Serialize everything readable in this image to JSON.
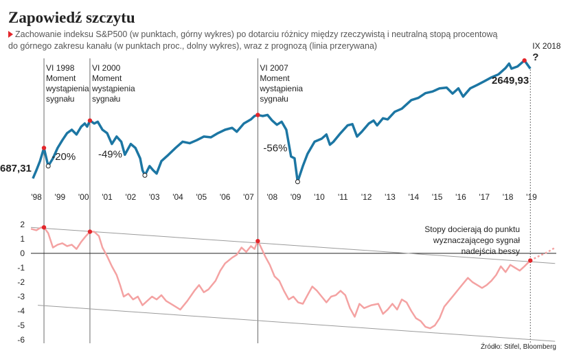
{
  "title": "Zapowiedź szczytu",
  "subtitle": [
    "Zachowanie indeksu S&P500 (w punktach, górny wykres) po dotarciu różnicy między rzeczywistą i neutralną stopą procentową",
    "do górnego zakresu kanału (w punktach proc., dolny wykres), wraz z prognozą (linia przerywana)"
  ],
  "source": "Źródło: Stifel, Bloomberg",
  "chart_data": [
    {
      "type": "line",
      "log_scale": true,
      "color": "#1c76a3",
      "xlim": [
        1997.62,
        2020.05
      ],
      "ylim": [
        590,
        3300
      ],
      "xticks": [
        {
          "value": 1998,
          "label": "'98"
        },
        {
          "value": 1999,
          "label": "'99"
        },
        {
          "value": 2000,
          "label": "'00"
        },
        {
          "value": 2001,
          "label": "'01"
        },
        {
          "value": 2002,
          "label": "'02"
        },
        {
          "value": 2003,
          "label": "'03"
        },
        {
          "value": 2004,
          "label": "'04"
        },
        {
          "value": 2005,
          "label": "'05"
        },
        {
          "value": 2006,
          "label": "'06"
        },
        {
          "value": 2007,
          "label": "'07"
        },
        {
          "value": 2008,
          "label": "'08"
        },
        {
          "value": 2009,
          "label": "'09"
        },
        {
          "value": 2010,
          "label": "'10"
        },
        {
          "value": 2011,
          "label": "'11"
        },
        {
          "value": 2012,
          "label": "'12"
        },
        {
          "value": 2013,
          "label": "'13"
        },
        {
          "value": 2014,
          "label": "'14"
        },
        {
          "value": 2015,
          "label": "'15"
        },
        {
          "value": 2016,
          "label": "'16"
        },
        {
          "value": 2017,
          "label": "'17"
        },
        {
          "value": 2018,
          "label": "'18"
        },
        {
          "value": 2019,
          "label": "'19"
        }
      ],
      "x": [
        1997.85,
        1998.0,
        1998.15,
        1998.32,
        1998.5,
        1998.7,
        1998.9,
        1999.1,
        1999.3,
        1999.5,
        1999.7,
        1999.9,
        2000.05,
        2000.15,
        2000.27,
        2000.45,
        2000.6,
        2000.8,
        2001.0,
        2001.2,
        2001.4,
        2001.6,
        2001.75,
        2002.0,
        2002.2,
        2002.4,
        2002.5,
        2002.6,
        2002.8,
        2002.95,
        2003.1,
        2003.3,
        2003.6,
        2003.9,
        2004.2,
        2004.5,
        2004.8,
        2005.1,
        2005.4,
        2005.7,
        2006.0,
        2006.3,
        2006.5,
        2006.8,
        2007.1,
        2007.25,
        2007.39,
        2007.6,
        2007.8,
        2008.0,
        2008.2,
        2008.4,
        2008.6,
        2008.8,
        2008.95,
        2009.08,
        2009.3,
        2009.5,
        2009.8,
        2010.1,
        2010.3,
        2010.45,
        2010.6,
        2010.9,
        2011.2,
        2011.4,
        2011.6,
        2011.8,
        2012.1,
        2012.3,
        2012.45,
        2012.7,
        2012.9,
        2013.2,
        2013.5,
        2013.9,
        2014.2,
        2014.5,
        2014.8,
        2015.1,
        2015.4,
        2015.65,
        2015.9,
        2016.1,
        2016.4,
        2016.7,
        2017.0,
        2017.3,
        2017.6,
        2017.9,
        2018.05,
        2018.15,
        2018.4,
        2018.7,
        2018.85,
        2018.95
      ],
      "values": [
        687.31,
        760,
        850,
        1000,
        800,
        880,
        1000,
        1100,
        1200,
        1250,
        1180,
        1300,
        1350,
        1300,
        1400,
        1350,
        1380,
        1250,
        1200,
        1050,
        1150,
        1080,
        920,
        1050,
        1000,
        880,
        760,
        714,
        800,
        760,
        730,
        850,
        920,
        1000,
        1080,
        1060,
        1100,
        1150,
        1140,
        1200,
        1250,
        1280,
        1220,
        1350,
        1420,
        1480,
        1500,
        1480,
        1500,
        1400,
        1330,
        1380,
        1250,
        900,
        880,
        660,
        800,
        930,
        1080,
        1120,
        1180,
        1040,
        1080,
        1200,
        1320,
        1340,
        1150,
        1220,
        1350,
        1400,
        1320,
        1440,
        1420,
        1560,
        1620,
        1800,
        1850,
        1960,
        2000,
        2080,
        2100,
        1950,
        2080,
        1880,
        2080,
        2170,
        2270,
        2380,
        2470,
        2670,
        2820,
        2650,
        2720,
        2930,
        2760,
        2649.93
      ],
      "value_labels": [
        "687,31",
        null,
        null,
        null,
        null,
        null,
        null,
        null,
        null,
        null,
        null,
        null,
        null,
        null,
        null,
        null,
        null,
        null,
        null,
        null,
        null,
        null,
        null,
        null,
        null,
        null,
        null,
        null,
        null,
        null,
        null,
        null,
        null,
        null,
        null,
        null,
        null,
        null,
        null,
        null,
        null,
        null,
        null,
        null,
        null,
        null,
        null,
        null,
        null,
        null,
        null,
        null,
        null,
        null,
        null,
        null,
        null,
        null,
        null,
        null,
        null,
        null,
        null,
        null,
        null,
        null,
        null,
        null,
        null,
        null,
        null,
        null,
        null,
        null,
        null,
        null,
        null,
        null,
        null,
        null,
        null,
        null,
        null,
        null,
        null,
        null,
        null,
        null,
        null,
        null,
        null,
        null,
        null,
        null,
        null,
        "2649,93"
      ],
      "peaks": {
        "x": [
          1998.32,
          2000.27,
          2007.39,
          2018.7
        ],
        "values": [
          1000,
          1400,
          1500,
          2930
        ],
        "color": "#e3262b"
      },
      "troughs": {
        "x": [
          1998.5,
          2002.6,
          2009.08
        ],
        "values": [
          800,
          714,
          660
        ]
      },
      "declines": [
        "-20%",
        "-49%",
        "-56%"
      ],
      "annotations": [
        {
          "x": 1998.32,
          "lines": [
            "VI 1998",
            "Moment",
            "wystąpienia",
            "sygnału"
          ]
        },
        {
          "x": 2000.27,
          "lines": [
            "VI 2000",
            "Moment",
            "wystąpienia",
            "sygnału"
          ]
        },
        {
          "x": 2007.39,
          "lines": [
            "VI 2007",
            "Moment",
            "wystąpienia",
            "sygnału"
          ]
        },
        {
          "x": 2018.95,
          "lines": [
            "IX 2018",
            "?"
          ],
          "dashed": true
        }
      ]
    },
    {
      "type": "line",
      "color": "#f4a2a2",
      "xlim": [
        1997.62,
        2020.05
      ],
      "ylim": [
        -6.5,
        2.5
      ],
      "yticks": [
        2,
        1,
        0,
        -1,
        -2,
        -3,
        -4,
        -5,
        -6
      ],
      "grid": false,
      "x": [
        1997.77,
        1998.0,
        1998.2,
        1998.32,
        1998.5,
        1998.7,
        1998.9,
        1999.1,
        1999.3,
        1999.5,
        1999.7,
        1999.9,
        2000.1,
        2000.27,
        2000.45,
        2000.65,
        2000.8,
        2001.0,
        2001.2,
        2001.4,
        2001.55,
        2001.7,
        2001.9,
        2002.1,
        2002.3,
        2002.5,
        2002.7,
        2002.9,
        2003.1,
        2003.3,
        2003.5,
        2003.8,
        2004.1,
        2004.4,
        2004.7,
        2004.9,
        2005.1,
        2005.3,
        2005.6,
        2005.8,
        2006.0,
        2006.3,
        2006.5,
        2006.7,
        2006.9,
        2007.1,
        2007.25,
        2007.39,
        2007.5,
        2007.7,
        2007.9,
        2008.1,
        2008.3,
        2008.5,
        2008.7,
        2008.9,
        2009.1,
        2009.3,
        2009.5,
        2009.7,
        2009.9,
        2010.1,
        2010.3,
        2010.5,
        2010.7,
        2010.9,
        2011.1,
        2011.3,
        2011.5,
        2011.7,
        2011.9,
        2012.2,
        2012.5,
        2012.7,
        2012.9,
        2013.1,
        2013.3,
        2013.5,
        2013.7,
        2013.9,
        2014.1,
        2014.3,
        2014.5,
        2014.7,
        2014.9,
        2015.1,
        2015.3,
        2015.5,
        2015.7,
        2015.9,
        2016.1,
        2016.3,
        2016.5,
        2016.7,
        2016.9,
        2017.1,
        2017.3,
        2017.5,
        2017.7,
        2017.9,
        2018.1,
        2018.3,
        2018.5,
        2018.7,
        2018.95
      ],
      "values": [
        1.7,
        1.6,
        1.8,
        1.8,
        1.4,
        0.4,
        0.6,
        0.7,
        0.5,
        0.6,
        0.3,
        0.8,
        1.2,
        1.5,
        1.5,
        1.2,
        0.4,
        -0.2,
        -0.9,
        -1.5,
        -2.2,
        -3.0,
        -2.8,
        -3.2,
        -3.0,
        -3.6,
        -3.3,
        -3.0,
        -3.2,
        -2.9,
        -3.3,
        -3.6,
        -3.9,
        -3.3,
        -2.6,
        -2.2,
        -2.7,
        -2.5,
        -1.9,
        -1.2,
        -0.7,
        -0.3,
        -0.1,
        0.4,
        0.1,
        0.5,
        0.3,
        0.85,
        0.5,
        -0.2,
        -0.8,
        -1.6,
        -1.9,
        -2.6,
        -3.2,
        -3.0,
        -3.4,
        -3.5,
        -2.9,
        -2.3,
        -2.6,
        -3.0,
        -3.4,
        -3.0,
        -2.9,
        -2.6,
        -2.9,
        -3.8,
        -4.4,
        -3.5,
        -3.8,
        -3.6,
        -3.5,
        -4.2,
        -3.9,
        -3.5,
        -3.9,
        -3.2,
        -3.4,
        -4.0,
        -4.5,
        -4.7,
        -5.1,
        -5.2,
        -5.0,
        -4.5,
        -3.7,
        -3.3,
        -2.9,
        -2.5,
        -2.1,
        -1.7,
        -2.0,
        -2.2,
        -2.4,
        -2.2,
        -1.9,
        -1.5,
        -0.9,
        -1.3,
        -0.8,
        -1.0,
        -1.2,
        -0.9,
        -0.5
      ],
      "forecast": {
        "x": [
          2018.95,
          2019.3,
          2019.7,
          2020.0
        ],
        "values": [
          -0.5,
          -0.2,
          0.1,
          0.4
        ]
      },
      "signals": {
        "x": [
          1998.32,
          2000.27,
          2007.39,
          2018.95
        ],
        "values": [
          1.8,
          1.5,
          0.85,
          -0.5
        ],
        "color": "#e3262b"
      },
      "trend_lines": [
        {
          "x": [
            1997.77,
            2020.0
          ],
          "values": [
            1.8,
            -0.7
          ]
        },
        {
          "x": [
            1998.06,
            2020.0
          ],
          "values": [
            -3.6,
            -6.1
          ]
        }
      ],
      "note": [
        "Stopy docierają do punktu",
        "wyznaczającego sygnał",
        "nadejścia bessy"
      ]
    }
  ]
}
